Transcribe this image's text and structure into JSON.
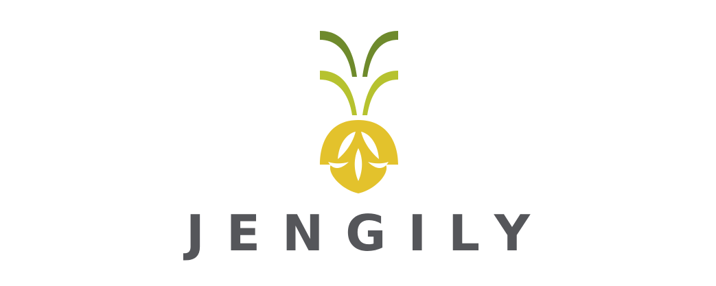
{
  "brand": {
    "name": "JENGILY",
    "colors": {
      "top_leaves": "#6e8a2c",
      "middle_leaves": "#b6c22f",
      "bulb": "#e3c22c",
      "text": "#55565a",
      "background": "#ffffff"
    },
    "icon": "pineapple-leaf-logo-icon"
  }
}
